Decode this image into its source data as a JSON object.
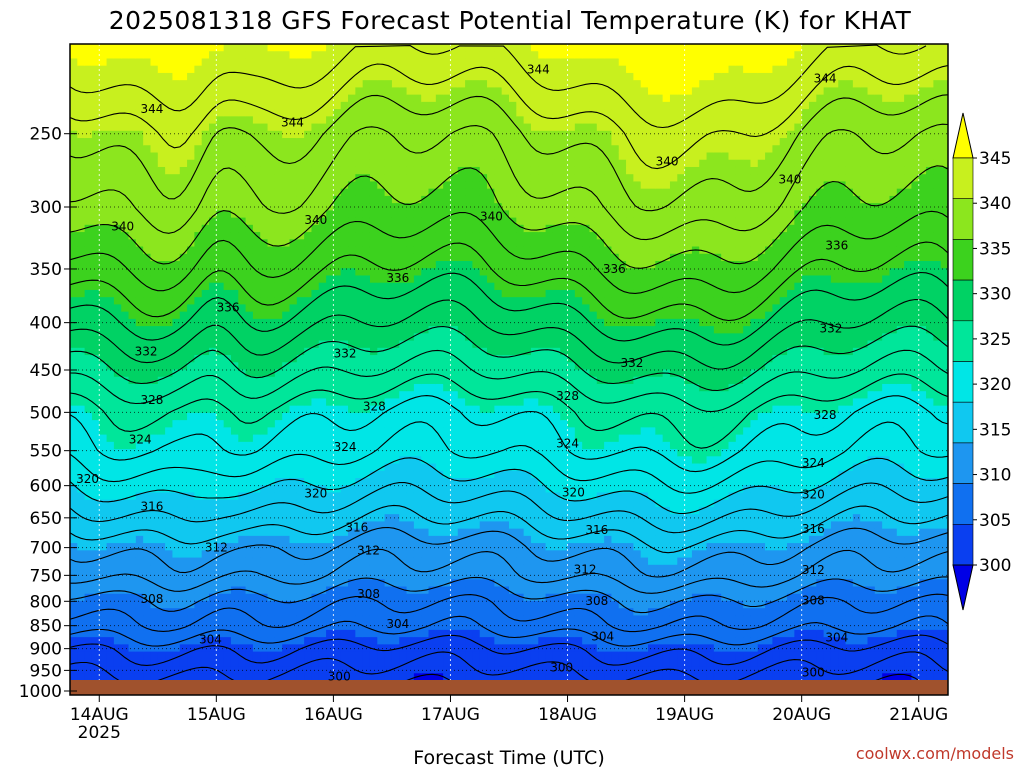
{
  "header": {
    "title": "2025081318 GFS Forecast Potential Temperature (K) for KHAT"
  },
  "footer": {
    "credit": "coolwx.com/models"
  },
  "chart_data": {
    "type": "heatmap",
    "title": "2025081318 GFS Forecast Potential Temperature (K) for KHAT",
    "xlabel": "Forecast Time (UTC)",
    "ylabel": "",
    "x_ticks": [
      "14AUG",
      "15AUG",
      "16AUG",
      "17AUG",
      "18AUG",
      "19AUG",
      "20AUG",
      "21AUG"
    ],
    "x_year_label": "2025",
    "x_range_days": [
      -0.25,
      7.25
    ],
    "y_ticks": [
      250,
      300,
      350,
      400,
      450,
      500,
      550,
      600,
      650,
      700,
      750,
      800,
      850,
      900,
      950,
      1000
    ],
    "y_range_hpa": [
      200,
      1010
    ],
    "y_scale": "log",
    "grid": true,
    "colorbar": {
      "labels": [
        300,
        305,
        310,
        315,
        320,
        325,
        330,
        335,
        340,
        345
      ],
      "bounds": [
        295,
        300,
        305,
        310,
        315,
        320,
        325,
        330,
        335,
        340,
        345,
        350
      ],
      "colors": [
        "#0000e6",
        "#0a3ff0",
        "#1070f0",
        "#1e96f0",
        "#10c8f0",
        "#00e6e6",
        "#00e69a",
        "#00d264",
        "#3cd21e",
        "#8ce61e",
        "#c8f01e",
        "#ffff00"
      ],
      "extend_colors": {
        "low": "#0000e6",
        "high": "#ffff00"
      }
    },
    "theta_profile_by_pressure": {
      "pressure_hpa": [
        1000,
        950,
        900,
        850,
        800,
        750,
        700,
        650,
        600,
        550,
        500,
        450,
        400,
        350,
        300,
        250,
        200
      ],
      "theta_k": [
        300,
        302,
        304,
        307,
        309,
        312,
        314,
        317,
        320,
        323,
        325,
        329,
        333,
        337,
        341,
        344,
        350
      ]
    },
    "contours_k": [
      300,
      302,
      304,
      306,
      308,
      310,
      312,
      314,
      316,
      318,
      320,
      322,
      324,
      326,
      328,
      330,
      332,
      334,
      336,
      338,
      340,
      342,
      344,
      346,
      348
    ],
    "contour_labels": [
      {
        "value": 344,
        "day": 0.45,
        "p": 235
      },
      {
        "value": 344,
        "day": 1.65,
        "p": 243
      },
      {
        "value": 344,
        "day": 3.75,
        "p": 213
      },
      {
        "value": 344,
        "day": 6.2,
        "p": 218
      },
      {
        "value": 340,
        "day": 0.2,
        "p": 315
      },
      {
        "value": 340,
        "day": 1.85,
        "p": 310
      },
      {
        "value": 340,
        "day": 3.35,
        "p": 307
      },
      {
        "value": 340,
        "day": 4.85,
        "p": 268
      },
      {
        "value": 340,
        "day": 5.9,
        "p": 280
      },
      {
        "value": 336,
        "day": 1.1,
        "p": 385
      },
      {
        "value": 336,
        "day": 2.55,
        "p": 358
      },
      {
        "value": 336,
        "day": 4.4,
        "p": 350
      },
      {
        "value": 336,
        "day": 6.3,
        "p": 330
      },
      {
        "value": 332,
        "day": 0.4,
        "p": 430
      },
      {
        "value": 332,
        "day": 2.1,
        "p": 432
      },
      {
        "value": 332,
        "day": 4.55,
        "p": 442
      },
      {
        "value": 332,
        "day": 6.25,
        "p": 406
      },
      {
        "value": 328,
        "day": 0.45,
        "p": 485
      },
      {
        "value": 328,
        "day": 2.35,
        "p": 493
      },
      {
        "value": 328,
        "day": 4.0,
        "p": 480
      },
      {
        "value": 328,
        "day": 6.2,
        "p": 503
      },
      {
        "value": 324,
        "day": 0.35,
        "p": 535
      },
      {
        "value": 324,
        "day": 2.1,
        "p": 545
      },
      {
        "value": 324,
        "day": 4.0,
        "p": 540
      },
      {
        "value": 324,
        "day": 6.1,
        "p": 567
      },
      {
        "value": 320,
        "day": -0.1,
        "p": 590
      },
      {
        "value": 320,
        "day": 1.85,
        "p": 612
      },
      {
        "value": 320,
        "day": 4.05,
        "p": 610
      },
      {
        "value": 320,
        "day": 6.1,
        "p": 613
      },
      {
        "value": 316,
        "day": 0.45,
        "p": 632
      },
      {
        "value": 316,
        "day": 2.2,
        "p": 666
      },
      {
        "value": 316,
        "day": 4.25,
        "p": 670
      },
      {
        "value": 316,
        "day": 6.1,
        "p": 668
      },
      {
        "value": 312,
        "day": 1.0,
        "p": 700
      },
      {
        "value": 312,
        "day": 2.3,
        "p": 705
      },
      {
        "value": 312,
        "day": 4.15,
        "p": 739
      },
      {
        "value": 312,
        "day": 6.1,
        "p": 740
      },
      {
        "value": 308,
        "day": 0.45,
        "p": 795
      },
      {
        "value": 308,
        "day": 2.3,
        "p": 786
      },
      {
        "value": 308,
        "day": 4.25,
        "p": 799
      },
      {
        "value": 308,
        "day": 6.1,
        "p": 798
      },
      {
        "value": 304,
        "day": 0.95,
        "p": 880
      },
      {
        "value": 304,
        "day": 2.55,
        "p": 846
      },
      {
        "value": 304,
        "day": 4.3,
        "p": 873
      },
      {
        "value": 304,
        "day": 6.3,
        "p": 875
      },
      {
        "value": 300,
        "day": 2.05,
        "p": 965
      },
      {
        "value": 300,
        "day": 3.95,
        "p": 943
      },
      {
        "value": 300,
        "day": 6.1,
        "p": 955
      }
    ]
  }
}
